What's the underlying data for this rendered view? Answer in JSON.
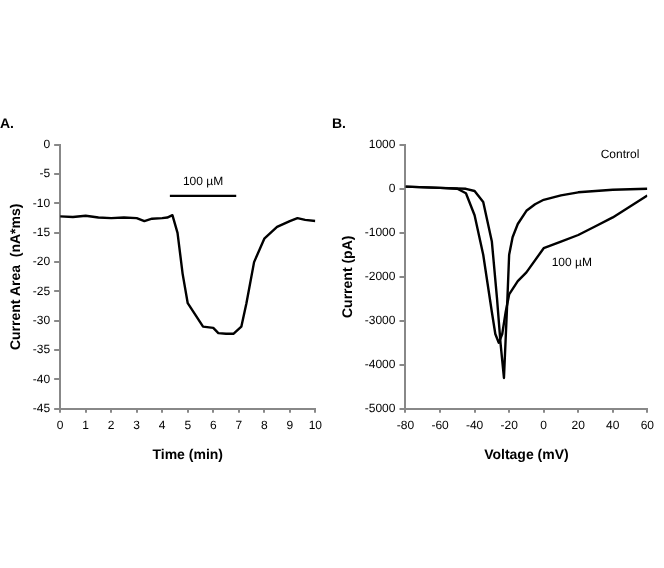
{
  "chart_data": [
    {
      "type": "line",
      "title": "A.",
      "xlabel": "Time (min)",
      "ylabel": "Current Area  (nA*ms)",
      "xlim": [
        0,
        10
      ],
      "xticks": [
        0,
        1,
        2,
        3,
        4,
        5,
        6,
        7,
        8,
        9,
        10
      ],
      "ylim": [
        -45,
        0
      ],
      "yticks": [
        -45,
        -40,
        -35,
        -30,
        -25,
        -20,
        -15,
        -10,
        -5,
        0
      ],
      "grid": false,
      "legend": false,
      "marker": "none",
      "series": [
        {
          "name": "100 µM",
          "color": "#000000",
          "x": [
            4.3,
            6.9
          ],
          "values": [
            -8.7,
            -8.7
          ]
        },
        {
          "color": "#000000",
          "x": [
            0,
            0.5,
            1,
            1.5,
            2,
            2.5,
            3,
            3.3,
            3.6,
            4,
            4.2,
            4.4,
            4.6,
            4.8,
            5.0,
            5.3,
            5.6,
            6.0,
            6.2,
            6.5,
            6.8,
            7.1,
            7.3,
            7.6,
            8.0,
            8.5,
            9.0,
            9.3,
            9.6,
            10
          ],
          "values": [
            -12.2,
            -12.3,
            -12.1,
            -12.4,
            -12.5,
            -12.4,
            -12.5,
            -13,
            -12.6,
            -12.5,
            -12.4,
            -12,
            -15,
            -22,
            -27,
            -29,
            -31,
            -31.2,
            -32.1,
            -32.2,
            -32.2,
            -31,
            -27,
            -20,
            -16,
            -14,
            -13,
            -12.5,
            -12.8,
            -13
          ]
        }
      ]
    },
    {
      "type": "line",
      "title": "B.",
      "xlabel": "Voltage (mV)",
      "ylabel": "Current (pA)",
      "xlim": [
        -80,
        60
      ],
      "xticks": [
        -80,
        -60,
        -40,
        -20,
        0,
        20,
        40,
        60
      ],
      "ylim": [
        -5000,
        1000
      ],
      "yticks": [
        -5000,
        -4000,
        -3000,
        -2000,
        -1000,
        0,
        1000
      ],
      "grid": false,
      "legend": false,
      "marker": "none",
      "series": [
        {
          "name": "Control",
          "color": "#000000",
          "x": [
            -80,
            -60,
            -45,
            -40,
            -35,
            -30,
            -27,
            -25,
            -23,
            -21,
            -20,
            -18,
            -15,
            -10,
            -5,
            0,
            10,
            20,
            40,
            60
          ],
          "values": [
            50,
            20,
            0,
            -50,
            -300,
            -1200,
            -2500,
            -3500,
            -4300,
            -2500,
            -1500,
            -1100,
            -800,
            -500,
            -350,
            -250,
            -150,
            -80,
            -20,
            0
          ]
        },
        {
          "name": "100 µM",
          "color": "#000000",
          "x": [
            -80,
            -60,
            -50,
            -45,
            -40,
            -35,
            -30,
            -28,
            -26,
            -24,
            -22,
            -20,
            -15,
            -10,
            0,
            10,
            20,
            30,
            40,
            50,
            60
          ],
          "values": [
            50,
            20,
            0,
            -100,
            -600,
            -1500,
            -2800,
            -3300,
            -3500,
            -3300,
            -2800,
            -2400,
            -2100,
            -1900,
            -1350,
            -1200,
            -1050,
            -850,
            -650,
            -400,
            -150
          ]
        }
      ]
    }
  ]
}
